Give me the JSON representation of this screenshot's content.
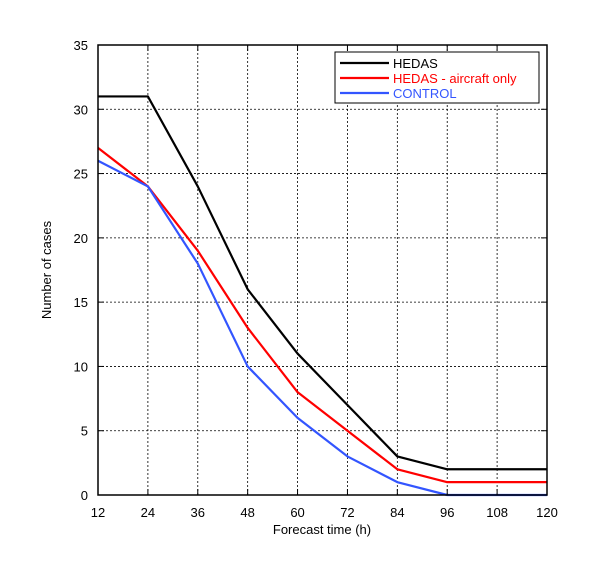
{
  "chart_data": {
    "type": "line",
    "xlabel": "Forecast time (h)",
    "ylabel": "Number of cases",
    "xlim": [
      12,
      120
    ],
    "ylim": [
      0,
      35
    ],
    "x_ticks": [
      12,
      24,
      36,
      48,
      60,
      72,
      84,
      96,
      108,
      120
    ],
    "y_ticks": [
      0,
      5,
      10,
      15,
      20,
      25,
      30,
      35
    ],
    "grid": true,
    "legend_position": "top-right",
    "series": [
      {
        "name": "HEDAS",
        "color": "#000000",
        "x": [
          12,
          24,
          36,
          48,
          60,
          72,
          84,
          96,
          108,
          120
        ],
        "values": [
          31,
          31,
          24,
          16,
          11,
          7,
          3,
          2,
          2,
          2
        ]
      },
      {
        "name": "HEDAS - aircraft only",
        "color": "#ff0000",
        "x": [
          12,
          24,
          36,
          48,
          60,
          72,
          84,
          96,
          108,
          120
        ],
        "values": [
          27,
          24,
          19,
          13,
          8,
          5,
          2,
          1,
          1,
          1
        ]
      },
      {
        "name": "CONTROL",
        "color": "#3355ff",
        "x": [
          12,
          24,
          36,
          48,
          60,
          72,
          84,
          96,
          108,
          120
        ],
        "values": [
          26,
          24,
          18,
          10,
          6,
          3,
          1,
          0,
          0,
          0
        ]
      }
    ]
  }
}
